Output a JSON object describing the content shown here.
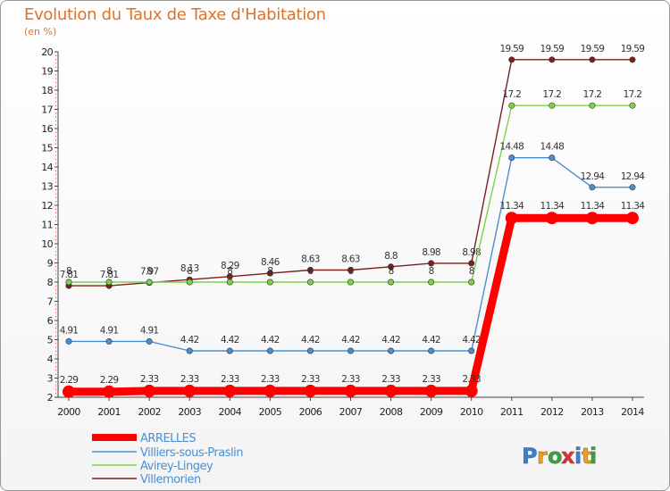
{
  "header": {
    "title": "Evolution du Taux de Taxe d'Habitation",
    "unit": "(en %)"
  },
  "logo": {
    "text": "Proxiti",
    "letters": [
      "P",
      "r",
      "o",
      "x",
      "i",
      "t",
      "i"
    ]
  },
  "chart_data": {
    "type": "line",
    "title": "Evolution du Taux de Taxe d'Habitation",
    "ylabel": "(en %)",
    "xlabel": "",
    "x": [
      "2000",
      "2001",
      "2002",
      "2003",
      "2004",
      "2005",
      "2006",
      "2007",
      "2008",
      "2009",
      "2010",
      "2011",
      "2012",
      "2013",
      "2014"
    ],
    "ylim": [
      2,
      20
    ],
    "yticks": [
      "2",
      "3",
      "4",
      "5",
      "6",
      "7",
      "8",
      "9",
      "10",
      "11",
      "12",
      "13",
      "14",
      "15",
      "16",
      "17",
      "18",
      "19",
      "20"
    ],
    "grid": false,
    "legend_position": "bottom-left",
    "series": [
      {
        "name": "ARRELLES",
        "color": "#ff0000",
        "values": [
          2.29,
          2.29,
          2.33,
          2.33,
          2.33,
          2.33,
          2.33,
          2.33,
          2.33,
          2.33,
          2.33,
          11.34,
          11.34,
          11.34,
          11.34
        ],
        "labels": [
          "2.29",
          "2.29",
          "2.33",
          "2.33",
          "2.33",
          "2.33",
          "2.33",
          "2.33",
          "2.33",
          "2.33",
          "2.33",
          "11.34",
          "11.34",
          "11.34",
          "11.34"
        ]
      },
      {
        "name": "Villiers-sous-Praslin",
        "color": "#4a90d0",
        "values": [
          4.91,
          4.91,
          4.91,
          4.42,
          4.42,
          4.42,
          4.42,
          4.42,
          4.42,
          4.42,
          4.42,
          14.48,
          14.48,
          12.94,
          12.94
        ],
        "labels": [
          "4.91",
          "4.91",
          "4.91",
          "4.42",
          "4.42",
          "4.42",
          "4.42",
          "4.42",
          "4.42",
          "4.42",
          "4.42",
          "14.48",
          "14.48",
          "12.94",
          "12.94"
        ]
      },
      {
        "name": "Avirey-Lingey",
        "color": "#7ed24a",
        "values": [
          8,
          8,
          8,
          8,
          8,
          8,
          8,
          8,
          8,
          8,
          8,
          17.2,
          17.2,
          17.2,
          17.2
        ],
        "labels": [
          "8",
          "8",
          "8",
          "8",
          "8",
          "8",
          "8",
          "8",
          "8",
          "8",
          "8",
          "17.2",
          "17.2",
          "17.2",
          "17.2"
        ]
      },
      {
        "name": "Villemorien",
        "color": "#7a2020",
        "values": [
          7.81,
          7.81,
          7.97,
          8.13,
          8.29,
          8.46,
          8.63,
          8.63,
          8.8,
          8.98,
          8.98,
          19.59,
          19.59,
          19.59,
          19.59
        ],
        "labels": [
          "7.81",
          "7.81",
          "7.97",
          "8.13",
          "8.29",
          "8.46",
          "8.63",
          "8.63",
          "8.8",
          "8.98",
          "8.98",
          "19.59",
          "19.59",
          "19.59",
          "19.59"
        ]
      }
    ]
  }
}
